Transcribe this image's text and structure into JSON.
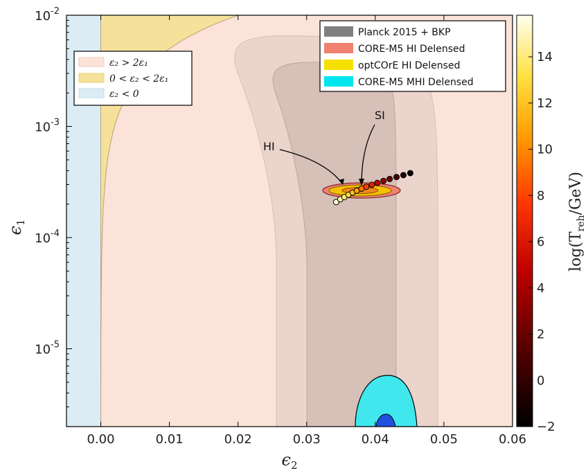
{
  "chart_data": {
    "type": "scatter",
    "xlabel": "ε₂",
    "ylabel": "ε₁",
    "xlim": [
      -0.005,
      0.06
    ],
    "ylim_log10": [
      -5.7,
      -2
    ],
    "y_scale": "log",
    "xticks": [
      {
        "value": 0.0,
        "label": "0.00"
      },
      {
        "value": 0.01,
        "label": "0.01"
      },
      {
        "value": 0.02,
        "label": "0.02"
      },
      {
        "value": 0.03,
        "label": "0.03"
      },
      {
        "value": 0.04,
        "label": "0.04"
      },
      {
        "value": 0.05,
        "label": "0.05"
      },
      {
        "value": 0.06,
        "label": "0.06"
      }
    ],
    "yticks": [
      {
        "exp": -2,
        "base": "10",
        "sup": "-2"
      },
      {
        "exp": -3,
        "base": "10",
        "sup": "-3"
      },
      {
        "exp": -4,
        "base": "10",
        "sup": "-4"
      },
      {
        "exp": -5,
        "base": "10",
        "sup": "-5"
      }
    ],
    "colorbar": {
      "label": "log(T_reh/GeV)",
      "label_main": "log(T",
      "label_sub": "reh",
      "label_end": "/GeV)",
      "range": [
        -2,
        15.8
      ],
      "ticks": [
        {
          "value": -2,
          "label": "−2"
        },
        {
          "value": 0,
          "label": "0"
        },
        {
          "value": 2,
          "label": "2"
        },
        {
          "value": 4,
          "label": "4"
        },
        {
          "value": 6,
          "label": "6"
        },
        {
          "value": 8,
          "label": "8"
        },
        {
          "value": 10,
          "label": "10"
        },
        {
          "value": 12,
          "label": "12"
        },
        {
          "value": 14,
          "label": "14"
        }
      ]
    },
    "legend_regions": {
      "placement": "upper-left",
      "entries": [
        {
          "label": "ε₂ > 2ε₁",
          "color": "#fbe3d9"
        },
        {
          "label": "0 < ε₂ < 2ε₁",
          "color": "#f5e19a"
        },
        {
          "label": "ε₂ < 0",
          "color": "#dbecf5"
        }
      ]
    },
    "legend_contours": {
      "placement": "upper-right",
      "entries": [
        {
          "label": "Planck 2015 + BKP",
          "color": "#808080"
        },
        {
          "label": "CORE-M5 HI Delensed",
          "color": "#f08070"
        },
        {
          "label": "optCOrE HI Delensed",
          "color": "#f5e000"
        },
        {
          "label": "CORE-M5 MHI Delensed",
          "color": "#00e5ee"
        }
      ]
    },
    "annotations": [
      {
        "text": "HI",
        "target": {
          "x": 0.0353,
          "log10y": -3.56
        }
      },
      {
        "text": "SI",
        "target": {
          "x": 0.038,
          "log10y": -3.57
        }
      }
    ],
    "points": [
      {
        "x": 0.0343,
        "log10y": -3.68,
        "c": 15.5
      },
      {
        "x": 0.0349,
        "log10y": -3.655,
        "c": 14.8
      },
      {
        "x": 0.0355,
        "log10y": -3.635,
        "c": 14.0
      },
      {
        "x": 0.0361,
        "log10y": -3.615,
        "c": 13.0
      },
      {
        "x": 0.0367,
        "log10y": -3.595,
        "c": 12.0
      },
      {
        "x": 0.0373,
        "log10y": -3.578,
        "c": 10.8
      },
      {
        "x": 0.038,
        "log10y": -3.56,
        "c": 9.5
      },
      {
        "x": 0.0387,
        "log10y": -3.543,
        "c": 8.0
      },
      {
        "x": 0.0395,
        "log10y": -3.525,
        "c": 6.5
      },
      {
        "x": 0.0403,
        "log10y": -3.508,
        "c": 5.0
      },
      {
        "x": 0.0412,
        "log10y": -3.49,
        "c": 3.5
      },
      {
        "x": 0.0421,
        "log10y": -3.473,
        "c": 2.0
      },
      {
        "x": 0.0431,
        "log10y": -3.455,
        "c": 0.5
      },
      {
        "x": 0.0441,
        "log10y": -3.438,
        "c": -0.8
      },
      {
        "x": 0.0451,
        "log10y": -3.42,
        "c": -1.8
      }
    ],
    "grid": false
  }
}
